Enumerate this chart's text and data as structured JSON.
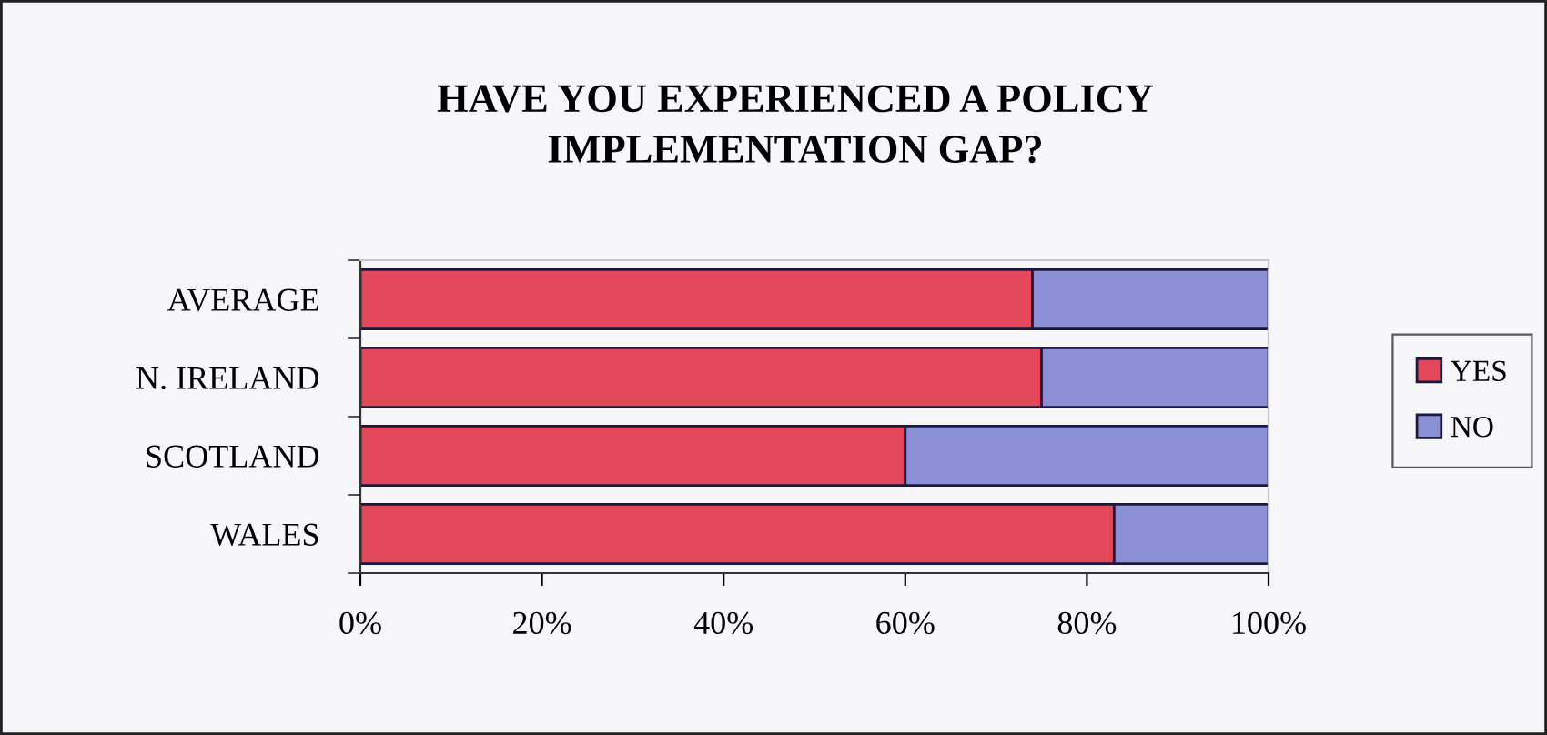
{
  "chart_data": {
    "type": "bar",
    "orientation": "horizontal",
    "stacked": true,
    "title": "HAVE YOU EXPERIENCED A POLICY\nIMPLEMENTATION GAP?",
    "categories": [
      "AVERAGE",
      "N. IRELAND",
      "SCOTLAND",
      "WALES"
    ],
    "series": [
      {
        "name": "YES",
        "color": "#e3485a",
        "values": [
          74,
          75,
          60,
          83
        ]
      },
      {
        "name": "NO",
        "color": "#8b8fd6",
        "values": [
          26,
          25,
          40,
          17
        ]
      }
    ],
    "xlim": [
      0,
      100
    ],
    "xticks": [
      {
        "value": 0,
        "label": "0%"
      },
      {
        "value": 20,
        "label": "20%"
      },
      {
        "value": 40,
        "label": "40%"
      },
      {
        "value": 60,
        "label": "60%"
      },
      {
        "value": 80,
        "label": "80%"
      },
      {
        "value": 100,
        "label": "100%"
      }
    ],
    "legend": "right",
    "grid": false
  }
}
